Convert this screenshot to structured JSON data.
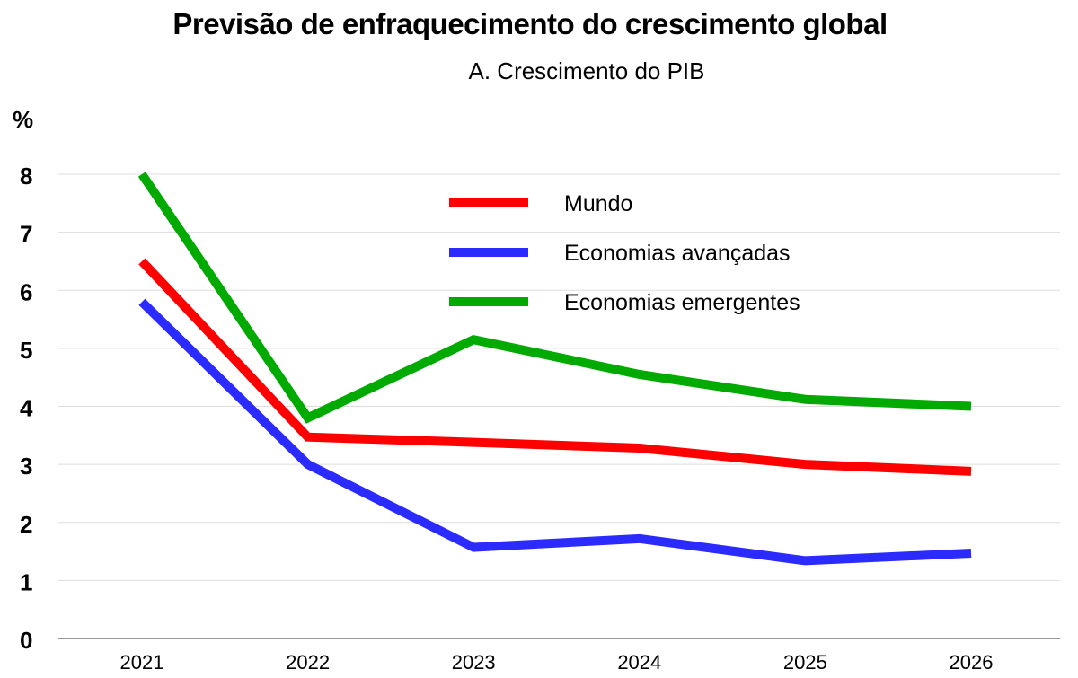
{
  "chart_data": {
    "type": "line",
    "title": "Previsão de enfraquecimento do crescimento global",
    "subtitle": "A. Crescimento do PIB",
    "ylabel": "%",
    "xlabel": "",
    "categories": [
      "2021",
      "2022",
      "2023",
      "2024",
      "2025",
      "2026"
    ],
    "ylim": [
      0,
      8
    ],
    "yticks": [
      0,
      1,
      2,
      3,
      4,
      5,
      6,
      7,
      8
    ],
    "grid": "horizontal",
    "legend_position": "top-center",
    "series": [
      {
        "name": "Mundo",
        "color": "#ff0000",
        "values": [
          6.5,
          3.47,
          3.38,
          3.28,
          3.0,
          2.88
        ]
      },
      {
        "name": "Economias avançadas",
        "color": "#2b2bff",
        "values": [
          5.8,
          3.0,
          1.57,
          1.72,
          1.34,
          1.47
        ]
      },
      {
        "name": "Economias emergentes",
        "color": "#00aa00",
        "values": [
          8.0,
          3.8,
          5.15,
          4.55,
          4.12,
          4.0
        ]
      }
    ]
  }
}
